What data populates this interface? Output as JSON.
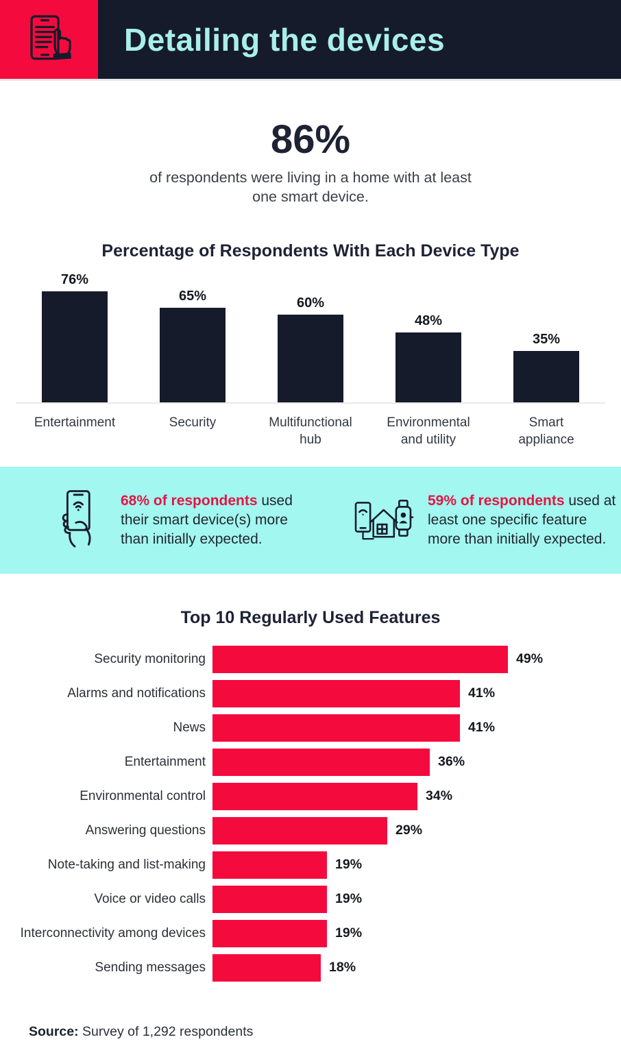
{
  "colors": {
    "red": "#f50a3e",
    "red_text": "#e51545",
    "navy": "#161b2b",
    "band_aqua": "#a2f7f0",
    "title_aqua": "#a9efe9"
  },
  "header": {
    "title": "Detailing the devices",
    "icon": "tap-device-icon"
  },
  "hero": {
    "value": "86%",
    "description": "of respondents were living in a home with at least one smart device."
  },
  "chart_data": [
    {
      "type": "bar",
      "orientation": "vertical",
      "title": "Percentage of Respondents With Each Device Type",
      "categories": [
        "Entertainment",
        "Security",
        "Multifunctional hub",
        "Environmental and utility",
        "Smart appliance"
      ],
      "values": [
        76,
        65,
        60,
        48,
        35
      ],
      "value_labels": [
        "76%",
        "65%",
        "60%",
        "48%",
        "35%"
      ],
      "unit": "%",
      "bar_color": "#161b2b",
      "ylim": [
        0,
        80
      ],
      "grid": false,
      "legend": false
    },
    {
      "type": "bar",
      "orientation": "horizontal",
      "title": "Top 10 Regularly Used Features",
      "categories": [
        "Security monitoring",
        "Alarms and notifications",
        "News",
        "Entertainment",
        "Environmental control",
        "Answering questions",
        "Note-taking and list-making",
        "Voice or video calls",
        "Interconnectivity among devices",
        "Sending messages"
      ],
      "values": [
        49,
        41,
        41,
        36,
        34,
        29,
        19,
        19,
        19,
        18
      ],
      "value_labels": [
        "49%",
        "41%",
        "41%",
        "36%",
        "34%",
        "29%",
        "19%",
        "19%",
        "19%",
        "18%"
      ],
      "unit": "%",
      "bar_color": "#f50a3e",
      "xlim": [
        0,
        55
      ],
      "grid": false,
      "legend": false
    }
  ],
  "callouts": [
    {
      "icon": "phone-in-hand-icon",
      "highlight": "68% of respondents",
      "text": " used their smart device(s) more than initially expected."
    },
    {
      "icon": "smart-home-devices-icon",
      "highlight": "59% of respondents",
      "text": " used at least one specific feature more than initially expected."
    }
  ],
  "source": {
    "label": "Source:",
    "text": " Survey of 1,292 respondents"
  }
}
